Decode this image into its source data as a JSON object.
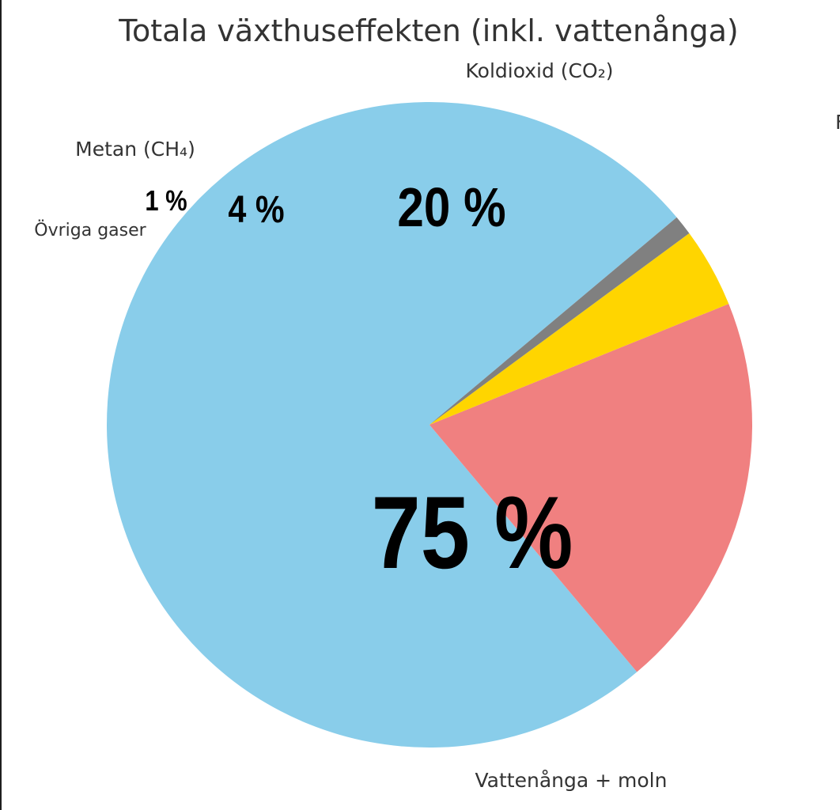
{
  "chart_data": {
    "type": "pie",
    "title": "Totala växthuseffekten (inkl. vattenånga)",
    "slices": [
      {
        "name": "Vattenånga + moln",
        "value": 75,
        "percent_label": "75 %",
        "color": "#89CDEA"
      },
      {
        "name": "Koldioxid (CO₂)",
        "value": 20,
        "percent_label": "20 %",
        "color": "#F08080"
      },
      {
        "name": "Metan (CH₄)",
        "value": 4,
        "percent_label": "4 %",
        "color": "#FFD500"
      },
      {
        "name": "Övriga gaser",
        "value": 1,
        "percent_label": "1 %",
        "color": "#808080"
      }
    ],
    "start_angle_deg": 40,
    "direction": "counterclockwise",
    "legend": "none",
    "edge_text": "F"
  }
}
